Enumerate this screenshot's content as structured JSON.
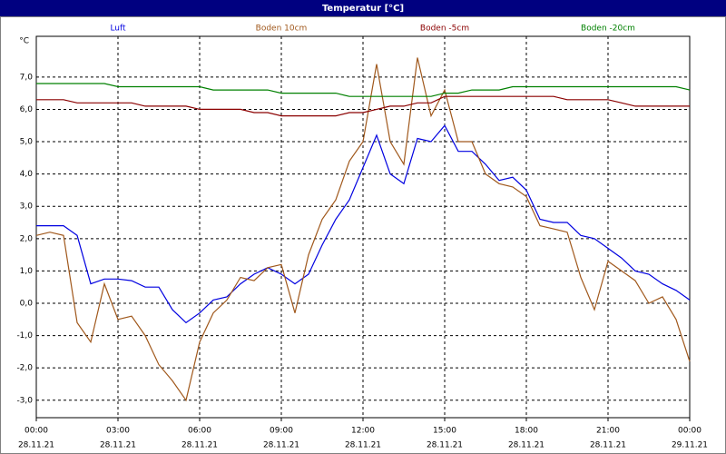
{
  "chart_data": {
    "type": "line",
    "title": "Temperatur [°C]",
    "y_unit": "°C",
    "x": [
      0,
      0.5,
      1,
      1.5,
      2,
      2.5,
      3,
      3.5,
      4,
      4.5,
      5,
      5.5,
      6,
      6.5,
      7,
      7.5,
      8,
      8.5,
      9,
      9.5,
      10,
      10.5,
      11,
      11.5,
      12,
      12.5,
      13,
      13.5,
      14,
      14.5,
      15,
      15.5,
      16,
      16.5,
      17,
      17.5,
      18,
      18.5,
      19,
      19.5,
      20,
      20.5,
      21,
      21.5,
      22,
      22.5,
      23,
      23.5,
      24
    ],
    "xlim": [
      0,
      24
    ],
    "xticks": [
      {
        "value": 0,
        "label": "00:00"
      },
      {
        "value": 3,
        "label": "03:00"
      },
      {
        "value": 6,
        "label": "06:00"
      },
      {
        "value": 9,
        "label": "09:00"
      },
      {
        "value": 12,
        "label": "12:00"
      },
      {
        "value": 15,
        "label": "15:00"
      },
      {
        "value": 18,
        "label": "18:00"
      },
      {
        "value": 21,
        "label": "21:00"
      },
      {
        "value": 24,
        "label": "00:00"
      }
    ],
    "xtick_dates": [
      "28.11.21",
      "28.11.21",
      "28.11.21",
      "28.11.21",
      "28.11.21",
      "28.11.21",
      "28.11.21",
      "28.11.21",
      "29.11.21"
    ],
    "ylim": [
      -3.54,
      8.26
    ],
    "yticks": [
      {
        "value": -3,
        "label": "-3,0"
      },
      {
        "value": -2,
        "label": "-2,0"
      },
      {
        "value": -1,
        "label": "-1,0"
      },
      {
        "value": 0,
        "label": "0,0"
      },
      {
        "value": 1,
        "label": "1,0"
      },
      {
        "value": 2,
        "label": "2,0"
      },
      {
        "value": 3,
        "label": "3,0"
      },
      {
        "value": 4,
        "label": "4,0"
      },
      {
        "value": 5,
        "label": "5,0"
      },
      {
        "value": 6,
        "label": "6,0"
      },
      {
        "value": 7,
        "label": "7,0"
      }
    ],
    "grid": true,
    "series": [
      {
        "name": "Luft",
        "color": "#0000e0",
        "values": [
          2.4,
          2.4,
          2.4,
          2.1,
          0.6,
          0.75,
          0.75,
          0.7,
          0.5,
          0.5,
          -0.2,
          -0.6,
          -0.3,
          0.1,
          0.2,
          0.6,
          0.9,
          1.1,
          0.9,
          0.6,
          0.9,
          1.8,
          2.6,
          3.2,
          4.2,
          5.2,
          4.0,
          3.7,
          5.1,
          5.0,
          5.5,
          4.7,
          4.7,
          4.3,
          3.8,
          3.9,
          3.5,
          2.6,
          2.5,
          2.5,
          2.1,
          2.0,
          1.7,
          1.4,
          1.0,
          0.9,
          0.6,
          0.4,
          0.1
        ]
      },
      {
        "name": "Boden 10cm",
        "color": "#a0581c",
        "values": [
          2.1,
          2.2,
          2.1,
          -0.6,
          -1.2,
          0.6,
          -0.5,
          -0.4,
          -1.0,
          -1.9,
          -2.4,
          -3.0,
          -1.2,
          -0.3,
          0.1,
          0.8,
          0.7,
          1.1,
          1.2,
          -0.3,
          1.5,
          2.6,
          3.2,
          4.4,
          5.0,
          7.4,
          5.0,
          4.3,
          7.6,
          5.8,
          6.6,
          5.0,
          5.0,
          4.0,
          3.7,
          3.6,
          3.3,
          2.4,
          2.3,
          2.2,
          0.8,
          -0.2,
          1.3,
          1.0,
          0.7,
          0.0,
          0.2,
          -0.5,
          -1.8
        ]
      },
      {
        "name": "Boden -5cm",
        "color": "#8b0000",
        "values": [
          6.3,
          6.3,
          6.3,
          6.2,
          6.2,
          6.2,
          6.2,
          6.2,
          6.1,
          6.1,
          6.1,
          6.1,
          6.0,
          6.0,
          6.0,
          6.0,
          5.9,
          5.9,
          5.8,
          5.8,
          5.8,
          5.8,
          5.8,
          5.9,
          5.9,
          6.0,
          6.1,
          6.1,
          6.2,
          6.2,
          6.4,
          6.4,
          6.4,
          6.4,
          6.4,
          6.4,
          6.4,
          6.4,
          6.4,
          6.3,
          6.3,
          6.3,
          6.3,
          6.2,
          6.1,
          6.1,
          6.1,
          6.1,
          6.1
        ]
      },
      {
        "name": "Boden -20cm",
        "color": "#008000",
        "values": [
          6.8,
          6.8,
          6.8,
          6.8,
          6.8,
          6.8,
          6.7,
          6.7,
          6.7,
          6.7,
          6.7,
          6.7,
          6.7,
          6.6,
          6.6,
          6.6,
          6.6,
          6.6,
          6.5,
          6.5,
          6.5,
          6.5,
          6.5,
          6.4,
          6.4,
          6.4,
          6.4,
          6.4,
          6.4,
          6.4,
          6.5,
          6.5,
          6.6,
          6.6,
          6.6,
          6.7,
          6.7,
          6.7,
          6.7,
          6.7,
          6.7,
          6.7,
          6.7,
          6.7,
          6.7,
          6.7,
          6.7,
          6.7,
          6.6
        ]
      }
    ]
  }
}
